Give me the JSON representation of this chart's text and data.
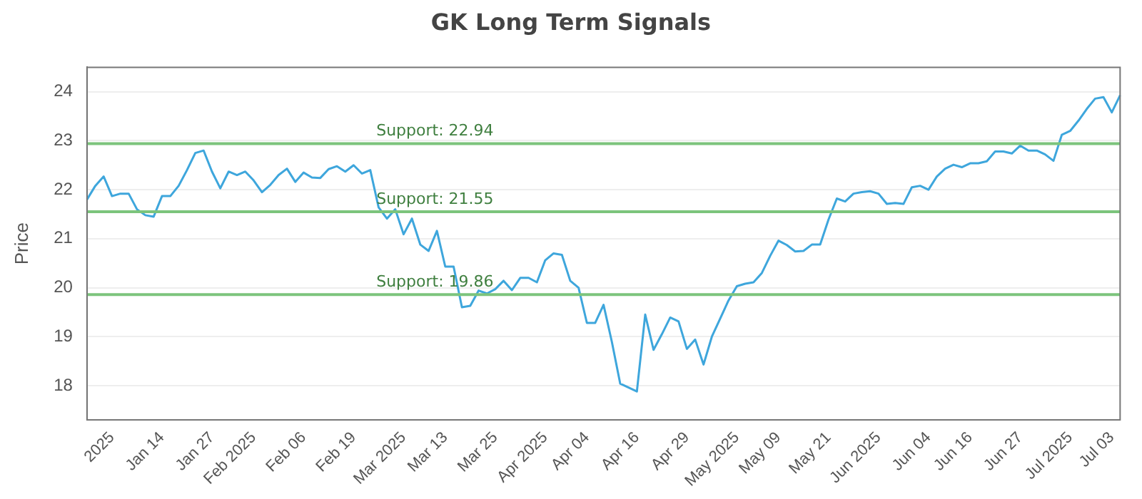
{
  "chart_data": {
    "type": "line",
    "title": "GK Long Term Signals",
    "ylabel": "Price",
    "categories": [
      null,
      null,
      null,
      "2025",
      null,
      null,
      null,
      null,
      null,
      "Jan 14",
      null,
      null,
      null,
      null,
      null,
      "Jan 27",
      null,
      null,
      null,
      null,
      "Feb 2025",
      null,
      null,
      null,
      null,
      null,
      "Feb 06",
      null,
      null,
      null,
      null,
      null,
      "Feb 19",
      null,
      null,
      null,
      null,
      null,
      "Mar 2025",
      null,
      null,
      null,
      null,
      "Mar 13",
      null,
      null,
      null,
      null,
      null,
      "Mar 25",
      null,
      null,
      null,
      null,
      null,
      "Apr 2025",
      null,
      null,
      null,
      null,
      "Apr 04",
      null,
      null,
      null,
      null,
      null,
      "Apr 16",
      null,
      null,
      null,
      null,
      null,
      "Apr 29",
      null,
      null,
      null,
      null,
      null,
      "May 2025",
      null,
      null,
      null,
      null,
      "May 09",
      null,
      null,
      null,
      null,
      null,
      "May 21",
      null,
      null,
      null,
      null,
      null,
      "Jun 2025",
      null,
      null,
      null,
      null,
      null,
      "Jun 04",
      null,
      null,
      null,
      null,
      "Jun 16",
      null,
      null,
      null,
      null,
      null,
      "Jun 27",
      null,
      null,
      null,
      null,
      null,
      "Jul 2025",
      null,
      null,
      null,
      null,
      "Jul 03",
      null
    ],
    "series": [
      {
        "color": "#3ea6dc",
        "values": [
          21.8,
          22.08,
          22.27,
          21.87,
          21.92,
          21.92,
          21.6,
          21.48,
          21.45,
          21.87,
          21.87,
          22.08,
          22.4,
          22.75,
          22.8,
          22.37,
          22.03,
          22.37,
          22.3,
          22.37,
          22.19,
          21.95,
          22.1,
          22.3,
          22.43,
          22.16,
          22.35,
          22.25,
          22.24,
          22.42,
          22.48,
          22.37,
          22.5,
          22.33,
          22.4,
          21.64,
          21.41,
          21.6,
          21.09,
          21.41,
          20.88,
          20.75,
          21.16,
          20.43,
          20.43,
          19.6,
          19.63,
          19.94,
          19.88,
          19.97,
          20.14,
          19.95,
          20.2,
          20.2,
          20.11,
          20.56,
          20.7,
          20.67,
          20.14,
          20.0,
          19.28,
          19.28,
          19.65,
          18.89,
          18.04,
          17.96,
          17.88,
          19.45,
          18.73,
          19.05,
          19.39,
          19.31,
          18.75,
          18.94,
          18.43,
          19.0,
          19.37,
          19.74,
          20.03,
          20.08,
          20.11,
          20.3,
          20.65,
          20.96,
          20.87,
          20.74,
          20.75,
          20.88,
          20.88,
          21.39,
          21.82,
          21.76,
          21.92,
          21.95,
          21.97,
          21.92,
          21.71,
          21.73,
          21.71,
          22.05,
          22.08,
          22.0,
          22.27,
          22.43,
          22.51,
          22.46,
          22.54,
          22.54,
          22.58,
          22.78,
          22.78,
          22.74,
          22.9,
          22.8,
          22.8,
          22.72,
          22.59,
          23.12,
          23.2,
          23.41,
          23.65,
          23.86,
          23.89,
          23.58,
          23.93
        ]
      }
    ],
    "ylim": [
      17.3,
      24.5
    ],
    "yticks": [
      18,
      19,
      20,
      21,
      22,
      23,
      24
    ],
    "grid": "y",
    "legend": false,
    "marker": "none",
    "line_style": "solid",
    "ref_lines": [
      {
        "axis": "y",
        "value": 22.94,
        "label": "Support: 22.94",
        "color": "#7cc47c"
      },
      {
        "axis": "y",
        "value": 21.55,
        "label": "Support: 21.55",
        "color": "#7cc47c"
      },
      {
        "axis": "y",
        "value": 19.86,
        "label": "Support: 19.86",
        "color": "#7cc47c"
      }
    ]
  }
}
